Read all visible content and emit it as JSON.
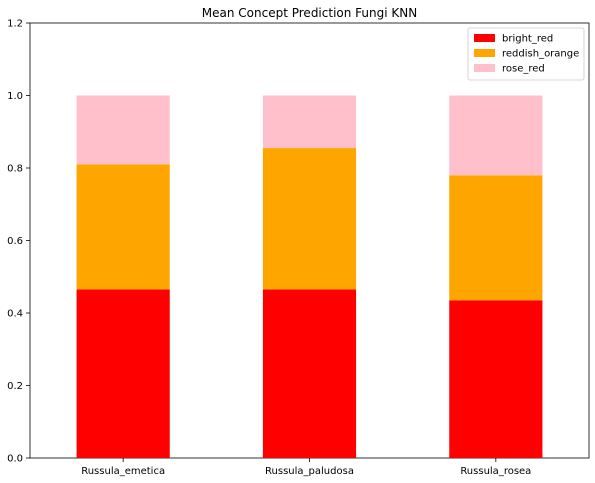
{
  "chart_data": {
    "type": "bar",
    "stacked": true,
    "title": "Mean Concept Prediction Fungi KNN",
    "xlabel": "",
    "ylabel": "",
    "categories": [
      "Russula_emetica",
      "Russula_paludosa",
      "Russula_rosea"
    ],
    "series": [
      {
        "name": "bright_red",
        "color": "#ff0000",
        "values": [
          0.465,
          0.465,
          0.435
        ]
      },
      {
        "name": "reddish_orange",
        "color": "#ffa500",
        "values": [
          0.345,
          0.39,
          0.345
        ]
      },
      {
        "name": "rose_red",
        "color": "#ffc0cb",
        "values": [
          0.19,
          0.145,
          0.22
        ]
      }
    ],
    "ylim": [
      0,
      1.2
    ],
    "yticks": [
      "0.0",
      "0.2",
      "0.4",
      "0.6",
      "0.8",
      "1.0",
      "1.2"
    ],
    "grid": false,
    "legend": "top-right"
  }
}
